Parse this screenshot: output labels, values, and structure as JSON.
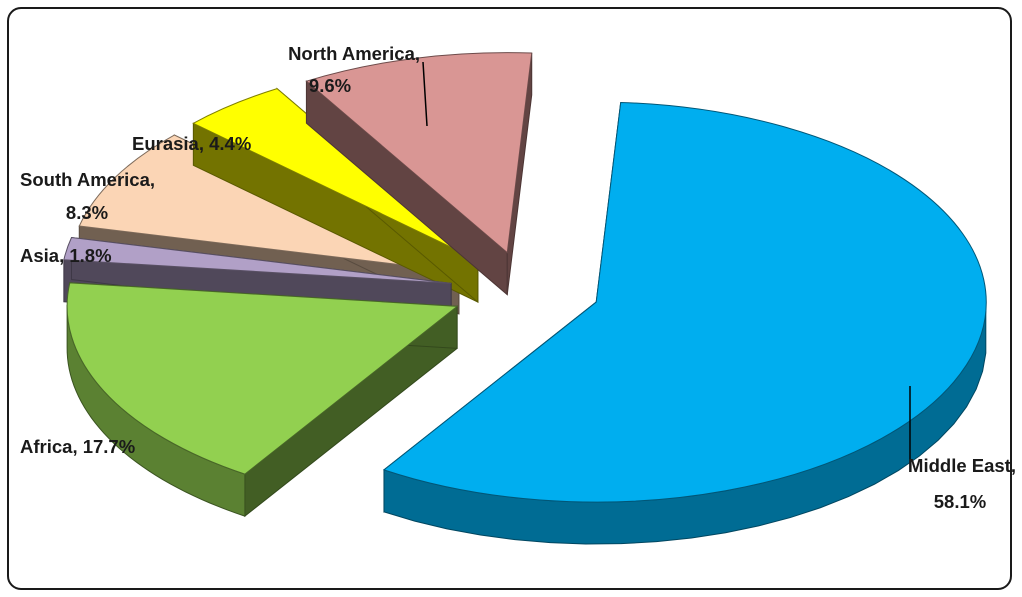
{
  "chart_data": {
    "type": "pie",
    "title": "",
    "exploded": true,
    "slices": [
      {
        "name": "Middle East",
        "value": 58.1,
        "label_line1": "Middle East,",
        "label_line2": "58.1%",
        "color": "#00AEEF"
      },
      {
        "name": "Africa",
        "value": 17.7,
        "label_line1": "Africa, 17.7%",
        "label_line2": "",
        "color": "#92D050"
      },
      {
        "name": "Asia",
        "value": 1.8,
        "label_line1": "Asia, 1.8%",
        "label_line2": "",
        "color": "#B1A0C7"
      },
      {
        "name": "South America",
        "value": 8.3,
        "label_line1": "South America,",
        "label_line2": "8.3%",
        "color": "#FBD5B5"
      },
      {
        "name": "Eurasia",
        "value": 4.4,
        "label_line1": "Eurasia, 4.4%",
        "label_line2": "",
        "color": "#FFFF00"
      },
      {
        "name": "North America",
        "value": 9.6,
        "label_line1": "North America,",
        "label_line2": "9.6%",
        "color": "#D99694"
      }
    ]
  }
}
